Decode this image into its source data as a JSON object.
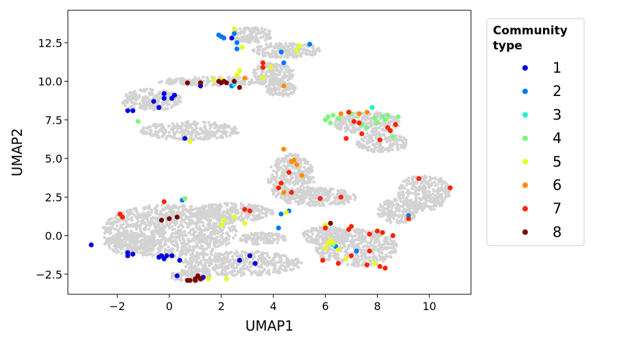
{
  "chart_data": {
    "type": "scatter",
    "xlabel": "UMAP1",
    "ylabel": "UMAP2",
    "xlim": [
      -3.9,
      11.6
    ],
    "ylim": [
      -3.8,
      14.6
    ],
    "x_ticks": [
      -2,
      0,
      2,
      4,
      6,
      8,
      10
    ],
    "y_ticks": [
      -2.5,
      0.0,
      2.5,
      5.0,
      7.5,
      10.0,
      12.5
    ],
    "x_tick_labels": [
      "−2",
      "0",
      "2",
      "4",
      "6",
      "8",
      "10"
    ],
    "y_tick_labels": [
      "−2.5",
      "0.0",
      "2.5",
      "5.0",
      "7.5",
      "10.0",
      "12.5"
    ],
    "grid": false,
    "legend": {
      "title_lines": [
        "Community",
        "type"
      ],
      "placement": "outside-right"
    },
    "background_color": "#d3d3d3",
    "background_regions": [
      {
        "cx": 3.2,
        "cy": 13.0,
        "rx": 0.8,
        "ry": 0.5
      },
      {
        "cx": 4.5,
        "cy": 12.0,
        "rx": 1.3,
        "ry": 0.5
      },
      {
        "cx": 2.0,
        "cy": 10.0,
        "rx": 2.5,
        "ry": 0.3
      },
      {
        "cx": -0.7,
        "cy": 8.8,
        "rx": 1.2,
        "ry": 0.7
      },
      {
        "cx": 4.0,
        "cy": 10.5,
        "rx": 0.8,
        "ry": 0.7
      },
      {
        "cx": 4.3,
        "cy": 9.5,
        "rx": 0.6,
        "ry": 0.5
      },
      {
        "cx": 0.8,
        "cy": 6.8,
        "rx": 1.9,
        "ry": 0.6
      },
      {
        "cx": 7.6,
        "cy": 7.3,
        "rx": 1.3,
        "ry": 0.7
      },
      {
        "cx": 8.2,
        "cy": 6.0,
        "rx": 1.0,
        "ry": 0.6
      },
      {
        "cx": 4.7,
        "cy": 3.7,
        "rx": 0.9,
        "ry": 1.6
      },
      {
        "cx": 5.8,
        "cy": 2.5,
        "rx": 1.4,
        "ry": 0.6
      },
      {
        "cx": 9.8,
        "cy": 2.8,
        "rx": 1.0,
        "ry": 1.2
      },
      {
        "cx": 8.8,
        "cy": 1.6,
        "rx": 0.8,
        "ry": 0.8
      },
      {
        "cx": 0.0,
        "cy": 0.3,
        "rx": 2.6,
        "ry": 1.7
      },
      {
        "cx": -1.5,
        "cy": -0.5,
        "rx": 1.0,
        "ry": 0.7
      },
      {
        "cx": 2.4,
        "cy": 1.5,
        "rx": 1.6,
        "ry": 0.6
      },
      {
        "cx": 2.8,
        "cy": -1.8,
        "rx": 2.3,
        "ry": 0.8
      },
      {
        "cx": 0.8,
        "cy": -2.6,
        "rx": 0.8,
        "ry": 0.4
      },
      {
        "cx": 7.2,
        "cy": -0.8,
        "rx": 1.6,
        "ry": 1.2
      },
      {
        "cx": 6.0,
        "cy": 0.0,
        "rx": 0.9,
        "ry": 0.6
      },
      {
        "cx": 3.6,
        "cy": -0.2,
        "rx": 0.9,
        "ry": 0.4
      }
    ],
    "series": [
      {
        "name": "1",
        "color": "#0000e6",
        "points": [
          [
            -3.0,
            -0.6
          ],
          [
            -1.6,
            -1.3
          ],
          [
            -1.6,
            -1.1
          ],
          [
            -1.4,
            -1.2
          ],
          [
            -0.4,
            -1.4
          ],
          [
            -0.3,
            -1.3
          ],
          [
            -0.2,
            -1.5
          ],
          [
            -0.1,
            -1.3
          ],
          [
            0.1,
            -1.3
          ],
          [
            0.4,
            -1.6
          ],
          [
            0.3,
            -2.6
          ],
          [
            1.3,
            -2.7
          ],
          [
            2.7,
            -1.6
          ],
          [
            3.1,
            -1.3
          ],
          [
            3.3,
            -1.8
          ],
          [
            -1.6,
            8.1
          ],
          [
            -1.4,
            8.1
          ],
          [
            -0.6,
            8.7
          ],
          [
            -0.4,
            8.3
          ],
          [
            -0.2,
            8.9
          ],
          [
            -0.2,
            9.2
          ],
          [
            0.1,
            8.9
          ],
          [
            0.2,
            9.1
          ],
          [
            0.6,
            6.3
          ],
          [
            1.2,
            9.7
          ],
          [
            2.4,
            12.8
          ]
        ]
      },
      {
        "name": "2",
        "color": "#0077ff",
        "points": [
          [
            1.9,
            13.0
          ],
          [
            2.1,
            12.8
          ],
          [
            2.0,
            12.9
          ],
          [
            2.5,
            13.1
          ],
          [
            2.6,
            12.5
          ],
          [
            2.6,
            12.1
          ],
          [
            4.3,
            11.9
          ],
          [
            4.4,
            11.2
          ],
          [
            5.4,
            12.4
          ],
          [
            4.2,
            0.5
          ],
          [
            4.3,
            1.4
          ],
          [
            4.6,
            1.6
          ],
          [
            6.4,
            -0.7
          ],
          [
            7.2,
            -1.0
          ],
          [
            9.2,
            1.3
          ],
          [
            0.5,
            2.3
          ],
          [
            2.4,
            9.7
          ]
        ]
      },
      {
        "name": "3",
        "color": "#1ff2d2",
        "points": [
          [
            7.8,
            8.3
          ],
          [
            6.3,
            -0.6
          ],
          [
            2.5,
            9.8
          ]
        ]
      },
      {
        "name": "4",
        "color": "#7cf77c",
        "points": [
          [
            -1.2,
            7.4
          ],
          [
            0.6,
            2.4
          ],
          [
            6.0,
            7.5
          ],
          [
            6.1,
            7.7
          ],
          [
            6.2,
            7.3
          ],
          [
            6.3,
            7.8
          ],
          [
            6.5,
            7.6
          ],
          [
            6.6,
            7.9
          ],
          [
            7.0,
            7.9
          ],
          [
            7.4,
            7.2
          ],
          [
            7.6,
            7.0
          ],
          [
            7.9,
            7.6
          ],
          [
            8.0,
            7.3
          ],
          [
            8.2,
            7.7
          ],
          [
            8.3,
            7.5
          ],
          [
            8.4,
            7.8
          ],
          [
            8.6,
            6.4
          ],
          [
            8.8,
            7.7
          ]
        ]
      },
      {
        "name": "5",
        "color": "#e6ff1a",
        "points": [
          [
            0.8,
            6.1
          ],
          [
            2.1,
            1.0
          ],
          [
            2.0,
            0.7
          ],
          [
            2.5,
            1.2
          ],
          [
            2.9,
            0.8
          ],
          [
            1.5,
            -2.8
          ],
          [
            2.2,
            -2.8
          ],
          [
            6.0,
            0.7
          ],
          [
            6.0,
            -0.8
          ],
          [
            6.1,
            -0.5
          ],
          [
            6.2,
            -0.3
          ],
          [
            6.3,
            -0.5
          ],
          [
            6.5,
            -0.9
          ],
          [
            6.8,
            -1.5
          ],
          [
            7.9,
            -1.8
          ],
          [
            1.7,
            10.1
          ],
          [
            2.0,
            10.1
          ],
          [
            2.7,
            10.7
          ],
          [
            2.6,
            10.4
          ],
          [
            2.8,
            12.2
          ],
          [
            3.6,
            10.2
          ],
          [
            3.9,
            10.9
          ],
          [
            4.9,
            12.0
          ],
          [
            5.0,
            12.3
          ],
          [
            2.5,
            13.4
          ],
          [
            4.5,
            1.5
          ]
        ]
      },
      {
        "name": "6",
        "color": "#ff8c00",
        "points": [
          [
            2.9,
            10.2
          ],
          [
            4.4,
            9.7
          ],
          [
            4.4,
            5.6
          ],
          [
            4.7,
            4.8
          ],
          [
            4.8,
            4.9
          ],
          [
            4.9,
            4.6
          ],
          [
            5.1,
            3.9
          ],
          [
            4.4,
            2.8
          ],
          [
            6.6,
            7.9
          ],
          [
            7.3,
            7.9
          ],
          [
            7.6,
            8.0
          ]
        ]
      },
      {
        "name": "7",
        "color": "#ff2200",
        "points": [
          [
            -1.9,
            1.4
          ],
          [
            -1.8,
            1.2
          ],
          [
            -0.2,
            2.2
          ],
          [
            2.9,
            1.7
          ],
          [
            3.1,
            1.6
          ],
          [
            4.2,
            3.1
          ],
          [
            4.3,
            3.4
          ],
          [
            4.6,
            4.1
          ],
          [
            4.7,
            2.8
          ],
          [
            5.8,
            2.4
          ],
          [
            6.6,
            2.5
          ],
          [
            6.9,
            8.0
          ],
          [
            7.1,
            7.4
          ],
          [
            7.3,
            7.3
          ],
          [
            6.8,
            6.3
          ],
          [
            7.4,
            6.6
          ],
          [
            8.1,
            6.2
          ],
          [
            8.4,
            7.0
          ],
          [
            8.5,
            6.8
          ],
          [
            8.7,
            7.2
          ],
          [
            9.6,
            3.7
          ],
          [
            10.8,
            3.1
          ],
          [
            9.2,
            1.1
          ],
          [
            6.0,
            0.5
          ],
          [
            6.9,
            0.4
          ],
          [
            7.0,
            0.6
          ],
          [
            7.7,
            0.1
          ],
          [
            8.0,
            0.3
          ],
          [
            8.2,
            0.2
          ],
          [
            8.6,
            0.0
          ],
          [
            7.7,
            -1.0
          ],
          [
            7.6,
            -1.9
          ],
          [
            8.1,
            -2.0
          ],
          [
            8.3,
            -2.1
          ],
          [
            5.9,
            -1.6
          ],
          [
            6.5,
            -1.8
          ],
          [
            7.0,
            -1.3
          ],
          [
            3.6,
            11.2
          ],
          [
            3.6,
            10.9
          ]
        ]
      },
      {
        "name": "8",
        "color": "#7a0000",
        "points": [
          [
            0.7,
            9.9
          ],
          [
            1.2,
            9.9
          ],
          [
            1.9,
            10.0
          ],
          [
            2.0,
            9.9
          ],
          [
            2.1,
            10.0
          ],
          [
            2.2,
            9.9
          ],
          [
            2.5,
            10.0
          ],
          [
            2.7,
            9.6
          ],
          [
            -0.3,
            1.0
          ],
          [
            0.0,
            1.1
          ],
          [
            0.3,
            1.2
          ],
          [
            0.7,
            -2.9
          ],
          [
            0.8,
            -2.9
          ],
          [
            1.0,
            -2.8
          ],
          [
            1.1,
            -2.6
          ],
          [
            1.0,
            -2.9
          ],
          [
            1.2,
            -2.8
          ],
          [
            6.2,
            0.8
          ]
        ]
      }
    ]
  }
}
